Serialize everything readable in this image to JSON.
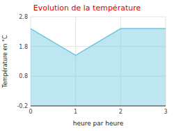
{
  "chart_data": {
    "type": "area",
    "title": "Evolution de la température",
    "xlabel": "heure par heure",
    "ylabel": "Température en °C",
    "x": [
      0,
      1,
      2,
      3
    ],
    "values": [
      2.4,
      1.5,
      2.4,
      2.4
    ],
    "xlim": [
      0,
      3
    ],
    "ylim": [
      -0.2,
      2.8
    ],
    "xticks": [
      0,
      1,
      2,
      3
    ],
    "yticks": [
      -0.2,
      0.8,
      1.8,
      2.8
    ],
    "color": "#6cc8e0",
    "grid": true
  }
}
